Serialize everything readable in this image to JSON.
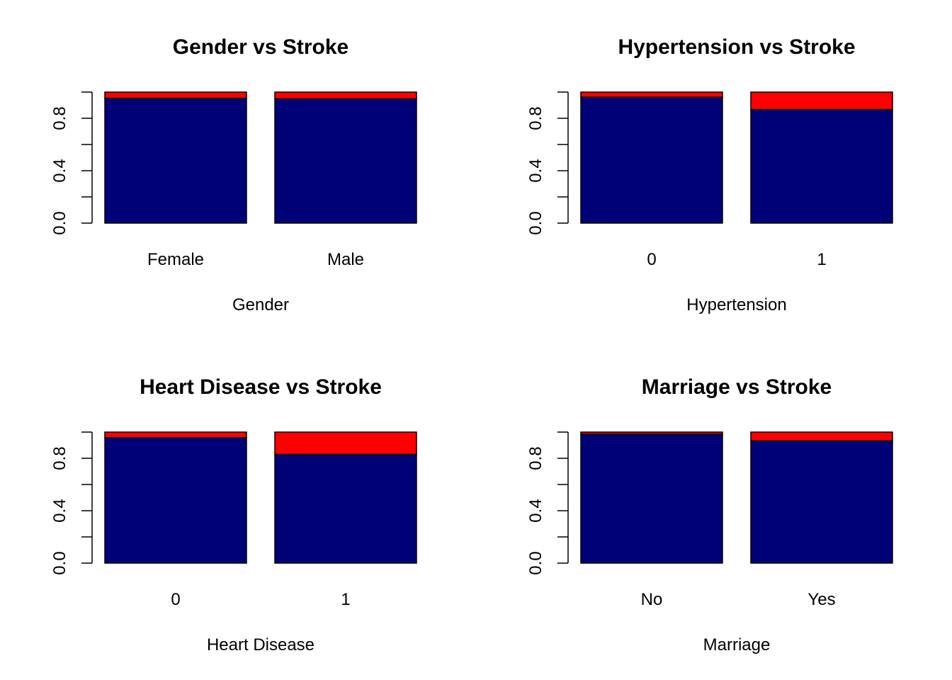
{
  "colors": {
    "no_stroke": "#000077",
    "stroke": "#ff0000",
    "border": "#000000"
  },
  "chart_data": [
    {
      "type": "bar",
      "stacked": true,
      "title": "Gender vs Stroke",
      "xlabel": "Gender",
      "ylabel": "",
      "ylim": [
        0,
        1
      ],
      "yticks": [
        "0.0",
        "0.4",
        "0.8"
      ],
      "categories": [
        "Female",
        "Male"
      ],
      "series": [
        {
          "values": [
            0.953,
            0.949
          ]
        },
        {
          "values": [
            0.047,
            0.051
          ]
        }
      ]
    },
    {
      "type": "bar",
      "stacked": true,
      "title": "Hypertension vs Stroke",
      "xlabel": "Hypertension",
      "ylabel": "",
      "ylim": [
        0,
        1
      ],
      "yticks": [
        "0.0",
        "0.4",
        "0.8"
      ],
      "categories": [
        "0",
        "1"
      ],
      "series": [
        {
          "values": [
            0.961,
            0.867
          ]
        },
        {
          "values": [
            0.039,
            0.133
          ]
        }
      ]
    },
    {
      "type": "bar",
      "stacked": true,
      "title": "Heart Disease vs Stroke",
      "xlabel": "Heart Disease",
      "ylabel": "",
      "ylim": [
        0,
        1
      ],
      "yticks": [
        "0.0",
        "0.4",
        "0.8"
      ],
      "categories": [
        "0",
        "1"
      ],
      "series": [
        {
          "values": [
            0.958,
            0.83
          ]
        },
        {
          "values": [
            0.042,
            0.17
          ]
        }
      ]
    },
    {
      "type": "bar",
      "stacked": true,
      "title": "Marriage vs Stroke",
      "xlabel": "Marriage",
      "ylabel": "",
      "ylim": [
        0,
        1
      ],
      "yticks": [
        "0.0",
        "0.4",
        "0.8"
      ],
      "categories": [
        "No",
        "Yes"
      ],
      "series": [
        {
          "values": [
            0.984,
            0.934
          ]
        },
        {
          "values": [
            0.016,
            0.066
          ]
        }
      ]
    }
  ]
}
